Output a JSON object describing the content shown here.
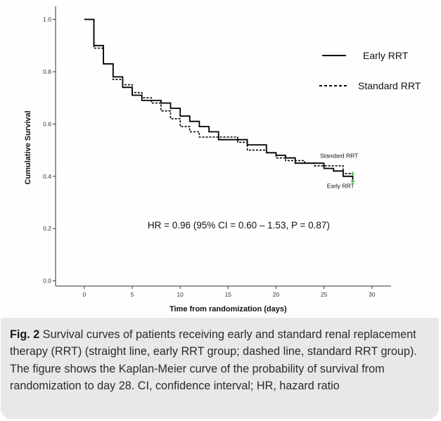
{
  "chart_data": {
    "type": "line",
    "subtype": "kaplan-meier step",
    "xlabel": "Time from randomization (days)",
    "ylabel": "Cumulative Survival",
    "xlim": [
      -3,
      32
    ],
    "ylim": [
      -0.02,
      1.05
    ],
    "x_ticks": [
      "0",
      "5",
      "10",
      "15",
      "20",
      "25",
      "30"
    ],
    "x_tick_values": [
      0,
      5,
      10,
      15,
      20,
      25,
      30
    ],
    "y_ticks": [
      "0.0",
      "0.2",
      "0.4",
      "0.6",
      "0.8",
      "1.0"
    ],
    "y_tick_values": [
      0.0,
      0.2,
      0.4,
      0.6,
      0.8,
      1.0
    ],
    "grid": false,
    "legend_position": "top-right",
    "series": [
      {
        "name": "Early RRT",
        "line_style": "solid",
        "color": "#000000",
        "x": [
          0,
          1,
          2,
          3,
          4,
          5,
          6,
          8,
          9,
          10,
          11,
          12,
          13,
          14,
          17,
          19,
          20,
          21,
          22,
          25,
          26,
          27,
          28
        ],
        "y": [
          1.0,
          0.9,
          0.83,
          0.78,
          0.74,
          0.71,
          0.69,
          0.68,
          0.66,
          0.63,
          0.61,
          0.59,
          0.57,
          0.54,
          0.52,
          0.49,
          0.48,
          0.47,
          0.45,
          0.43,
          0.42,
          0.4,
          0.38
        ]
      },
      {
        "name": "Standard RRT",
        "line_style": "dashed",
        "color": "#000000",
        "x": [
          0,
          1,
          2,
          3,
          4,
          5,
          6,
          7,
          8,
          9,
          10,
          11,
          12,
          16,
          17,
          19,
          20,
          21,
          23,
          24,
          27,
          28
        ],
        "y": [
          1.0,
          0.89,
          0.83,
          0.77,
          0.75,
          0.72,
          0.7,
          0.68,
          0.65,
          0.62,
          0.59,
          0.57,
          0.55,
          0.53,
          0.5,
          0.49,
          0.47,
          0.46,
          0.45,
          0.44,
          0.41,
          0.41
        ]
      }
    ],
    "annotations": [
      {
        "text": "Standard RRT",
        "x": 24.6,
        "y": 0.47
      },
      {
        "text": "Early RRT",
        "x": 25.3,
        "y": 0.355
      },
      {
        "text": "HR = 0.96 (95% CI = 0.60 – 1.53, P = 0.87)",
        "x": 6.6,
        "y": 0.2
      }
    ],
    "censor_marker_color": "#3bb34a"
  },
  "legend": {
    "early": "Early RRT",
    "standard": "Standard RRT"
  },
  "caption": {
    "label": "Fig. 2",
    "text": " Survival curves of patients receiving early and standard renal replacement therapy (RRT) (straight line, early RRT group; dashed line, standard RRT group). The figure shows the Kaplan-Meier curve of the probability of survival from randomization to day 28. CI, confidence interval; HR, hazard ratio"
  }
}
